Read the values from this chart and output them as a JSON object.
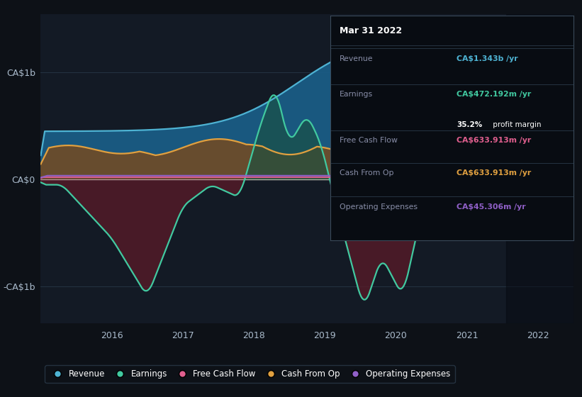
{
  "bg_color": "#0d1117",
  "plot_bg": "#131a25",
  "ylabel_ca1b": "CA$1b",
  "ylabel_ca0": "CA$0",
  "ylabel_ca_neg1b": "-CA$1b",
  "legend": [
    {
      "label": "Revenue",
      "color": "#4eb3d3"
    },
    {
      "label": "Earnings",
      "color": "#41c9a0"
    },
    {
      "label": "Free Cash Flow",
      "color": "#e05f8e"
    },
    {
      "label": "Cash From Op",
      "color": "#e0a040"
    },
    {
      "label": "Operating Expenses",
      "color": "#9060c8"
    }
  ],
  "tooltip": {
    "date": "Mar 31 2022",
    "revenue_label": "Revenue",
    "revenue_val": "CA$1.343b",
    "revenue_color": "#4eb3d3",
    "earnings_label": "Earnings",
    "earnings_val": "CA$472.192m",
    "earnings_color": "#41c9a0",
    "margin_bold": "35.2%",
    "margin_text": " profit margin",
    "fcf_label": "Free Cash Flow",
    "fcf_val": "CA$633.913m",
    "fcf_color": "#e05f8e",
    "cashop_label": "Cash From Op",
    "cashop_val": "CA$633.913m",
    "cashop_color": "#e0a040",
    "opex_label": "Operating Expenses",
    "opex_val": "CA$45.306m",
    "opex_color": "#9060c8"
  },
  "revenue_fill_color": "#1a5f8a",
  "cashop_fill_color": "#7b4a1a",
  "earnings_pos_color": "#1a5040",
  "earnings_neg_color": "#5a1a28",
  "divider_color": "#2a3a4a",
  "tooltip_bg": "#080c12",
  "tooltip_border": "#3a4a5a",
  "x_ticks": [
    2016,
    2017,
    2018,
    2019,
    2020,
    2021,
    2022
  ],
  "xlim": [
    2015.0,
    2022.5
  ],
  "ylim": [
    -1.35,
    1.55
  ]
}
